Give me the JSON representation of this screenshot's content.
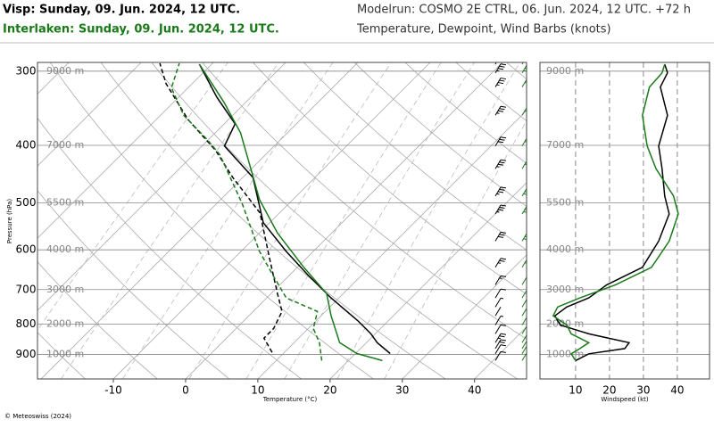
{
  "chart_data": {
    "type": "skewt",
    "titles": [
      "Visp: Sunday, 09. Jun. 2024, 12 UTC.",
      "Interlaken: Sunday, 09. Jun. 2024, 12 UTC."
    ],
    "model_run": "Modelrun: COSMO 2E CTRL, 06. Jun. 2024, 12 UTC. +72 h",
    "subtitle": "Temperature, Dewpoint, Wind Barbs (knots)",
    "ylabel": "Pressure (hPa)",
    "xlabel": "Temperature (°C)",
    "ylim": [
      990,
      290
    ],
    "yticks": [
      300,
      400,
      500,
      600,
      700,
      800,
      900
    ],
    "height_labels": [
      "9000 m",
      "7000 m",
      "5500 m",
      "4000 m",
      "3000 m",
      "2000 m",
      "1000 m"
    ],
    "xlim": [
      -20.5,
      47.2
    ],
    "xticks": [
      -10,
      0,
      10,
      20,
      30,
      40
    ],
    "wind_xlabel": "Windspeed (kt)",
    "wind_xlim": [
      -0.5,
      49.5
    ],
    "wind_xticks": [
      10,
      20,
      30,
      40
    ],
    "stations": [
      {
        "color": "#000000",
        "temperature": {
          "p": [
            897,
            860,
            831,
            789,
            723,
            663,
            603,
            540,
            453,
            401,
            368,
            332,
            292
          ],
          "values": [
            24.8,
            21.5,
            19.4,
            15.7,
            8.9,
            2.7,
            -3.8,
            -10.9,
            -18.6,
            -26.9,
            -28.5,
            -34.7,
            -41.7
          ]
        },
        "dewpoint": {
          "p": [
            893,
            845,
            814,
            762,
            711,
            617,
            520,
            453,
            408,
            362,
            315,
            291
          ],
          "values": [
            8.3,
            5.2,
            5.2,
            4.0,
            0.9,
            -5.3,
            -12.7,
            -21.4,
            -27.5,
            -35.6,
            -43.6,
            -47.3
          ]
        },
        "wind": {
          "p": [
            922,
            898,
            880,
            860,
            831,
            803,
            775,
            749,
            723,
            687,
            642,
            580,
            522,
            487,
            438,
            401,
            356,
            319,
            302,
            292
          ],
          "values": [
            10.0,
            13.9,
            24.5,
            25.8,
            13.9,
            5.5,
            3.9,
            7.4,
            13.9,
            19.2,
            29.7,
            34.5,
            37.6,
            36.3,
            35.5,
            34.5,
            37.1,
            35.0,
            37.1,
            36.3
          ]
        }
      },
      {
        "color": "#1a7a1a",
        "temperature": {
          "p": [
            922,
            897,
            860,
            775,
            711,
            642,
            562,
            494,
            438,
            381,
            338,
            292
          ],
          "values": [
            24.7,
            20.2,
            16.3,
            11.4,
            7.7,
            0.9,
            -7.5,
            -14.6,
            -20.1,
            -26.5,
            -33.1,
            -41.7
          ]
        },
        "dewpoint": {
          "p": [
            922,
            860,
            814,
            762,
            723,
            663,
            603,
            502,
            415,
            391,
            356,
            320,
            291
          ],
          "values": [
            16.3,
            13.5,
            10.7,
            8.9,
            2.7,
            -2.2,
            -7.5,
            -16.4,
            -26.3,
            -30.2,
            -36.8,
            -42.3,
            -44.6
          ]
        },
        "wind": {
          "p": [
            922,
            898,
            880,
            860,
            831,
            803,
            775,
            749,
            723,
            687,
            642,
            580,
            522,
            487,
            438,
            401,
            356,
            319,
            302,
            292
          ],
          "values": [
            10.0,
            8.7,
            11.3,
            13.9,
            8.7,
            7.4,
            3.4,
            4.7,
            11.3,
            21.8,
            32.4,
            37.6,
            40.3,
            38.9,
            33.7,
            31.1,
            29.7,
            31.8,
            35.5,
            36.3
          ]
        }
      }
    ],
    "footer": "© Meteoswiss (2024)"
  }
}
